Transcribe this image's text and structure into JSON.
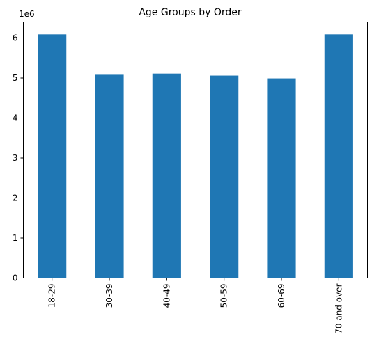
{
  "chart_data": {
    "type": "bar",
    "title": "Age Groups by Order",
    "xlabel": "",
    "ylabel": "",
    "y_scale_label": "1e6",
    "y_multiplier": 1000000,
    "categories": [
      "18-29",
      "30-39",
      "40-49",
      "50-59",
      "60-69",
      "70 and over"
    ],
    "values": [
      6090000,
      5080000,
      5110000,
      5060000,
      4990000,
      6090000
    ],
    "yticks": [
      "0",
      "1",
      "2",
      "3",
      "4",
      "5",
      "6"
    ],
    "ylim": [
      0,
      6400000
    ],
    "grid": false,
    "legend": "none",
    "bar_color": "#1f77b4"
  }
}
